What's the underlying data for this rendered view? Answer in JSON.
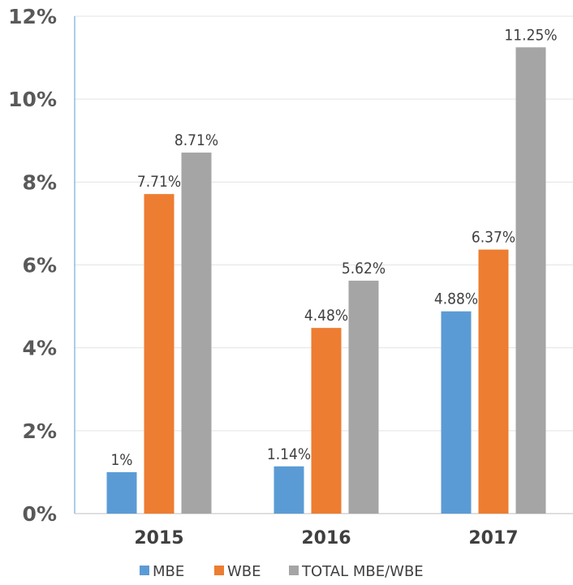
{
  "chart_data": {
    "type": "bar",
    "title": "",
    "xlabel": "",
    "ylabel": "",
    "categories": [
      "2015",
      "2016",
      "2017"
    ],
    "ylim": [
      0,
      12
    ],
    "yticks": [
      0,
      2,
      4,
      6,
      8,
      10,
      12
    ],
    "ytick_labels": [
      "0%",
      "2%",
      "4%",
      "6%",
      "8%",
      "10%",
      "12%"
    ],
    "grid": true,
    "legend_position": "bottom",
    "series": [
      {
        "name": "MBE",
        "color": "#5b9bd5",
        "values": [
          1,
          1.14,
          4.88
        ],
        "labels": [
          "1%",
          "1.14%",
          "4.88%"
        ]
      },
      {
        "name": "WBE",
        "color": "#ed7d31",
        "values": [
          7.71,
          4.48,
          6.37
        ],
        "labels": [
          "7.71%",
          "4.48%",
          "6.37%"
        ]
      },
      {
        "name": "TOTAL MBE/WBE",
        "color": "#a5a5a5",
        "values": [
          8.71,
          5.62,
          11.25
        ],
        "labels": [
          "8.71%",
          "5.62%",
          "11.25%"
        ]
      }
    ]
  }
}
